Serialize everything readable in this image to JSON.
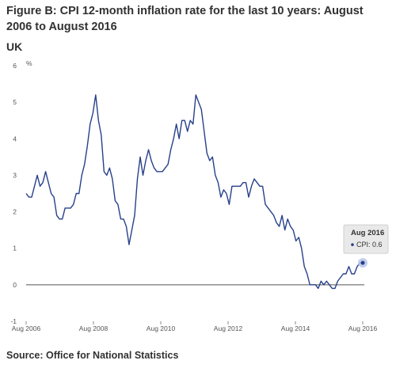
{
  "title": "Figure B: CPI 12-month inflation rate for the last 10 years: August 2006 to August 2016",
  "subtitle": "UK",
  "source": "Source: Office for National Statistics",
  "chart_data": {
    "type": "line",
    "ylabel_unit": "%",
    "ylim": [
      -1,
      6
    ],
    "yticks": [
      "-1",
      "0",
      "1",
      "2",
      "3",
      "4",
      "5",
      "6"
    ],
    "xtick_labels": [
      "Aug 2006",
      "Aug 2008",
      "Aug 2010",
      "Aug 2012",
      "Aug 2014",
      "Aug 2016"
    ],
    "x_start": "2006-08",
    "x_end": "2016-08",
    "grid": false,
    "line_color": "#27408b",
    "series": [
      {
        "name": "CPI",
        "values": [
          2.5,
          2.4,
          2.4,
          2.7,
          3.0,
          2.7,
          2.8,
          3.1,
          2.8,
          2.5,
          2.4,
          1.9,
          1.8,
          1.8,
          2.1,
          2.1,
          2.1,
          2.2,
          2.5,
          2.5,
          3.0,
          3.3,
          3.8,
          4.4,
          4.7,
          5.2,
          4.5,
          4.1,
          3.1,
          3.0,
          3.2,
          2.9,
          2.3,
          2.2,
          1.8,
          1.8,
          1.6,
          1.1,
          1.5,
          1.9,
          2.9,
          3.5,
          3.0,
          3.4,
          3.7,
          3.4,
          3.2,
          3.1,
          3.1,
          3.1,
          3.2,
          3.3,
          3.7,
          4.0,
          4.4,
          4.0,
          4.5,
          4.5,
          4.2,
          4.5,
          4.4,
          5.2,
          5.0,
          4.8,
          4.2,
          3.6,
          3.4,
          3.5,
          3.0,
          2.8,
          2.4,
          2.6,
          2.5,
          2.2,
          2.7,
          2.7,
          2.7,
          2.7,
          2.8,
          2.8,
          2.4,
          2.7,
          2.9,
          2.8,
          2.7,
          2.7,
          2.2,
          2.1,
          2.0,
          1.9,
          1.7,
          1.6,
          1.9,
          1.5,
          1.8,
          1.6,
          1.5,
          1.2,
          1.3,
          1.0,
          0.5,
          0.3,
          0.0,
          0.0,
          0.0,
          -0.1,
          0.1,
          0.0,
          0.1,
          0.0,
          -0.1,
          -0.1,
          0.1,
          0.2,
          0.3,
          0.3,
          0.5,
          0.3,
          0.3,
          0.5,
          0.6,
          0.6
        ]
      }
    ],
    "tooltip": {
      "title": "Aug 2016",
      "label": "CPI: 0.6"
    }
  }
}
